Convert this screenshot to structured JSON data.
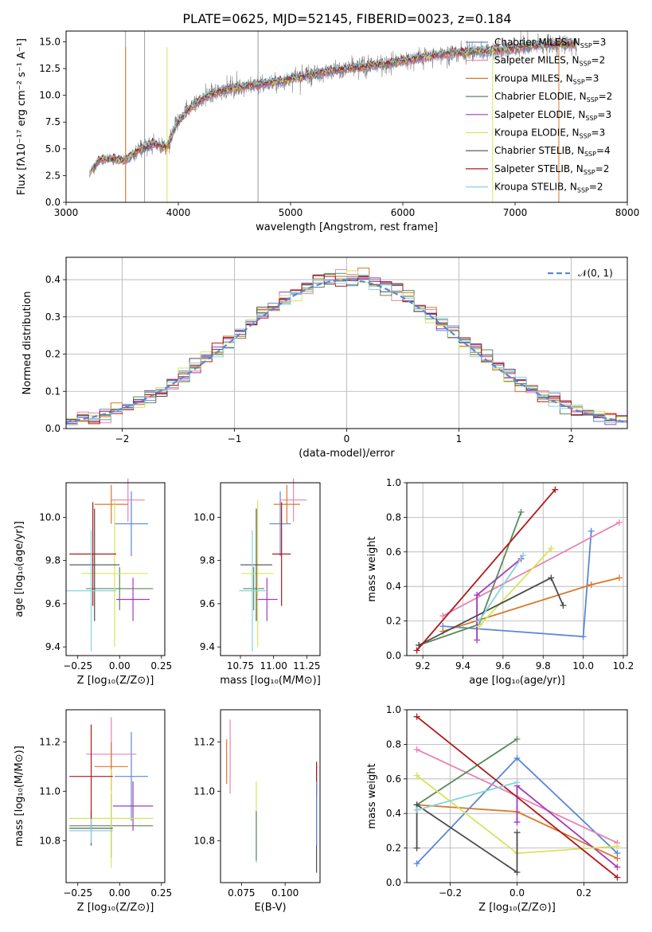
{
  "figure": {
    "title": "PLATE=0625, MJD=52145, FIBERID=0023, z=0.184"
  },
  "models": [
    {
      "name": "Chabrier MILES",
      "nssp": "3",
      "color": "#5b87d5"
    },
    {
      "name": "Salpeter MILES",
      "nssp": "2",
      "color": "#e882b3"
    },
    {
      "name": "Kroupa MILES",
      "nssp": "3",
      "color": "#d9782a"
    },
    {
      "name": "Chabrier ELODIE",
      "nssp": "2",
      "color": "#5a8a5a"
    },
    {
      "name": "Salpeter ELODIE",
      "nssp": "3",
      "color": "#a43bbb"
    },
    {
      "name": "Kroupa ELODIE",
      "nssp": "3",
      "color": "#d7e45a"
    },
    {
      "name": "Chabrier STELIB",
      "nssp": "4",
      "color": "#4d4d4d"
    },
    {
      "name": "Salpeter STELIB",
      "nssp": "2",
      "color": "#b01818"
    },
    {
      "name": "Kroupa STELIB",
      "nssp": "2",
      "color": "#86d3dc"
    }
  ],
  "chart_data": [
    {
      "id": "spectrum",
      "type": "line",
      "xlabel": "wavelength [Angstrom, rest frame]",
      "ylabel": "Flux [fλ10⁻¹⁷ erg cm⁻² s⁻¹ A⁻¹]",
      "xlim": [
        3000,
        8000
      ],
      "ylim": [
        0,
        16
      ],
      "xticks": [
        "3000",
        "4000",
        "5000",
        "6000",
        "7000",
        "8000"
      ],
      "yticks": [
        "0.0",
        "2.5",
        "5.0",
        "7.5",
        "10.0",
        "12.5",
        "15.0"
      ],
      "legend": "top-right",
      "data_color": "#808080",
      "continuum": {
        "x": [
          3210,
          3300,
          3400,
          3520,
          3580,
          3700,
          3780,
          3900,
          3980,
          4100,
          4250,
          4400,
          4600,
          4800,
          5000,
          5200,
          5400,
          5600,
          5800,
          6000,
          6200,
          6400,
          6600,
          6800,
          7000,
          7200,
          7400,
          7550
        ],
        "y": [
          2.7,
          4.0,
          4.1,
          3.9,
          4.4,
          5.2,
          5.5,
          5.1,
          7.2,
          8.8,
          9.9,
          10.5,
          10.9,
          11.1,
          11.5,
          12.0,
          12.4,
          12.6,
          12.9,
          13.2,
          13.6,
          13.9,
          14.1,
          14.2,
          14.4,
          14.7,
          14.8,
          14.8
        ]
      }
    },
    {
      "id": "residuals",
      "type": "line",
      "xlabel": "(data-model)/error",
      "ylabel": "Normed distribution",
      "xlim": [
        -2.5,
        2.5
      ],
      "ylim": [
        0,
        0.46
      ],
      "xticks": [
        "−2",
        "−1",
        "0",
        "1",
        "2"
      ],
      "yticks": [
        "0.0",
        "0.1",
        "0.2",
        "0.3",
        "0.4"
      ],
      "grid": true,
      "legend": "top-right",
      "reference_label": "𝒩(0, 1)",
      "reference_color": "#5b87d5",
      "bin_width": 0.1
    },
    {
      "id": "age-vs-z",
      "type": "scatter",
      "xlabel": "Z [log₁₀(Z/Z⊙)]",
      "ylabel": "age  [log₁₀(age/yr)]",
      "xlim": [
        -0.32,
        0.27
      ],
      "ylim": [
        9.36,
        10.16
      ],
      "xticks": [
        "−0.25",
        "0.00",
        "0.25"
      ],
      "yticks": [
        "9.4",
        "9.6",
        "9.8",
        "10.0"
      ],
      "points": [
        {
          "x": 0.07,
          "xerr": 0.1,
          "y": 9.97,
          "yerr": 0.15
        },
        {
          "x": 0.05,
          "xerr": 0.1,
          "y": 10.08,
          "yerr": 0.1
        },
        {
          "x": -0.05,
          "xerr": 0.1,
          "y": 10.06,
          "yerr": 0.09
        },
        {
          "x": 0.0,
          "xerr": 0.2,
          "y": 9.67,
          "yerr": 0.1
        },
        {
          "x": 0.08,
          "xerr": 0.1,
          "y": 9.62,
          "yerr": 0.1
        },
        {
          "x": -0.03,
          "xerr": 0.2,
          "y": 9.74,
          "yerr": 0.34
        },
        {
          "x": -0.15,
          "xerr": 0.15,
          "y": 9.78,
          "yerr": 0.26
        },
        {
          "x": -0.16,
          "xerr": 0.14,
          "y": 9.83,
          "yerr": 0.24
        },
        {
          "x": -0.17,
          "xerr": 0.15,
          "y": 9.66,
          "yerr": 0.28
        }
      ]
    },
    {
      "id": "age-vs-mass",
      "type": "scatter",
      "xlabel": "mass [log₁₀(M/M⊙)]",
      "xlim": [
        10.6,
        11.35
      ],
      "ylim": [
        9.36,
        10.16
      ],
      "xticks": [
        "10.75",
        "11.00",
        "11.25"
      ],
      "yticks": [
        "9.4",
        "9.6",
        "9.8",
        "10.0"
      ],
      "points": [
        {
          "x": 11.05,
          "xerr": 0.08,
          "y": 9.97,
          "yerr": 0.15
        },
        {
          "x": 11.15,
          "xerr": 0.1,
          "y": 10.08,
          "yerr": 0.1
        },
        {
          "x": 11.1,
          "xerr": 0.1,
          "y": 10.06,
          "yerr": 0.09
        },
        {
          "x": 10.85,
          "xerr": 0.08,
          "y": 9.67,
          "yerr": 0.1
        },
        {
          "x": 10.95,
          "xerr": 0.08,
          "y": 9.62,
          "yerr": 0.1
        },
        {
          "x": 10.88,
          "xerr": 0.12,
          "y": 9.74,
          "yerr": 0.34
        },
        {
          "x": 10.87,
          "xerr": 0.12,
          "y": 9.78,
          "yerr": 0.26
        },
        {
          "x": 11.06,
          "xerr": 0.07,
          "y": 9.83,
          "yerr": 0.24
        },
        {
          "x": 10.84,
          "xerr": 0.1,
          "y": 9.66,
          "yerr": 0.28
        }
      ]
    },
    {
      "id": "mass-weight-vs-age",
      "type": "line",
      "xlabel": "age  [log₁₀(age/yr)]",
      "ylabel": "mass weight",
      "xlim": [
        9.12,
        10.22
      ],
      "ylim": [
        0,
        1
      ],
      "xticks": [
        "9.2",
        "9.4",
        "9.6",
        "9.8",
        "10.0",
        "10.2"
      ],
      "yticks": [
        "0.0",
        "0.2",
        "0.4",
        "0.6",
        "0.8",
        "1.0"
      ],
      "grid": true,
      "series": [
        {
          "x": [
            9.3,
            10.0,
            10.04
          ],
          "y": [
            0.17,
            0.11,
            0.72
          ]
        },
        {
          "x": [
            9.3,
            10.18
          ],
          "y": [
            0.23,
            0.77
          ]
        },
        {
          "x": [
            9.3,
            10.04,
            10.18
          ],
          "y": [
            0.14,
            0.41,
            0.45
          ]
        },
        {
          "x": [
            9.18,
            9.48,
            9.69
          ],
          "y": [
            0.06,
            0.18,
            0.83
          ]
        },
        {
          "x": [
            9.47,
            9.47,
            9.69
          ],
          "y": [
            0.09,
            0.35,
            0.56
          ]
        },
        {
          "x": [
            9.48,
            9.84
          ],
          "y": [
            0.17,
            0.62
          ]
        },
        {
          "x": [
            9.18,
            9.84,
            9.9
          ],
          "y": [
            0.06,
            0.45,
            0.29
          ]
        },
        {
          "x": [
            9.17,
            9.86
          ],
          "y": [
            0.03,
            0.96
          ]
        },
        {
          "x": [
            9.48,
            9.7
          ],
          "y": [
            0.2,
            0.58
          ]
        }
      ]
    },
    {
      "id": "mass-vs-z",
      "type": "scatter",
      "xlabel": "Z [log₁₀(Z/Z⊙)]",
      "ylabel": "mass [log₁₀(M/M⊙)]",
      "xlim": [
        -0.32,
        0.27
      ],
      "ylim": [
        10.63,
        11.33
      ],
      "xticks": [
        "−0.25",
        "0.00",
        "0.25"
      ],
      "yticks": [
        "10.8",
        "11.0",
        "11.2"
      ],
      "points": [
        {
          "x": 0.07,
          "xerr": 0.1,
          "y": 11.06,
          "yerr": 0.18
        },
        {
          "x": -0.05,
          "xerr": 0.15,
          "y": 11.15,
          "yerr": 0.15
        },
        {
          "x": -0.05,
          "xerr": 0.1,
          "y": 11.1,
          "yerr": 0.1
        },
        {
          "x": -0.05,
          "xerr": 0.25,
          "y": 10.86,
          "yerr": 0.13
        },
        {
          "x": 0.08,
          "xerr": 0.12,
          "y": 10.94,
          "yerr": 0.1
        },
        {
          "x": -0.05,
          "xerr": 0.25,
          "y": 10.89,
          "yerr": 0.2
        },
        {
          "x": -0.17,
          "xerr": 0.13,
          "y": 10.85,
          "yerr": 0.07
        },
        {
          "x": -0.17,
          "xerr": 0.13,
          "y": 11.06,
          "yerr": 0.21
        },
        {
          "x": -0.17,
          "xerr": 0.13,
          "y": 10.84,
          "yerr": 0.05
        }
      ]
    },
    {
      "id": "mass-vs-ebv",
      "type": "scatter",
      "xlabel": "E(B-V)",
      "xlim": [
        0.063,
        0.12
      ],
      "ylim": [
        10.63,
        11.33
      ],
      "xticks": [
        "0.075",
        "0.100"
      ],
      "yticks": [
        "10.8",
        "11.0",
        "11.2"
      ],
      "points": [
        {
          "x": 0.0685,
          "y": 11.14,
          "yerr": 0.15
        },
        {
          "x": 0.0665,
          "y": 11.12,
          "yerr": 0.09
        },
        {
          "x": 0.0835,
          "y": 10.81,
          "yerr": 0.1
        },
        {
          "x": 0.0835,
          "y": 10.96,
          "yerr": 0.08
        },
        {
          "x": 0.0835,
          "y": 10.82,
          "yerr": 0.1
        },
        {
          "x": 0.118,
          "y": 10.89,
          "yerr": 0.22
        },
        {
          "x": 0.118,
          "y": 11.05,
          "yerr": 0.07
        },
        {
          "x": 0.118,
          "y": 10.91,
          "yerr": 0.13
        }
      ]
    },
    {
      "id": "mass-weight-vs-z",
      "type": "line",
      "xlabel": "Z [log₁₀(Z/Z⊙)]",
      "ylabel": "mass weight",
      "xlim": [
        -0.33,
        0.33
      ],
      "ylim": [
        0,
        1
      ],
      "xticks": [
        "−0.2",
        "0.0",
        "0.2"
      ],
      "yticks": [
        "0.0",
        "0.2",
        "0.4",
        "0.6",
        "0.8",
        "1.0"
      ],
      "grid": true,
      "series": [
        {
          "x": [
            -0.3,
            0.0,
            0.3
          ],
          "y": [
            0.11,
            0.72,
            0.17
          ]
        },
        {
          "x": [
            -0.3,
            0.3
          ],
          "y": [
            0.77,
            0.23
          ]
        },
        {
          "x": [
            -0.3,
            0.0,
            0.3
          ],
          "y": [
            0.45,
            0.41,
            0.14
          ]
        },
        {
          "x": [
            -0.3,
            0.0
          ],
          "y": [
            0.45,
            0.83
          ]
        },
        {
          "x": [
            0.0,
            0.0,
            0.3
          ],
          "y": [
            0.35,
            0.56,
            0.09
          ]
        },
        {
          "x": [
            -0.3,
            0.0,
            0.3
          ],
          "y": [
            0.62,
            0.17,
            0.21
          ]
        },
        {
          "x": [
            -0.3,
            -0.3,
            0.0,
            0.0
          ],
          "y": [
            0.2,
            0.45,
            0.06,
            0.29
          ]
        },
        {
          "x": [
            -0.3,
            0.3
          ],
          "y": [
            0.96,
            0.03
          ]
        },
        {
          "x": [
            -0.3,
            0.0
          ],
          "y": [
            0.42,
            0.58
          ]
        }
      ]
    }
  ]
}
